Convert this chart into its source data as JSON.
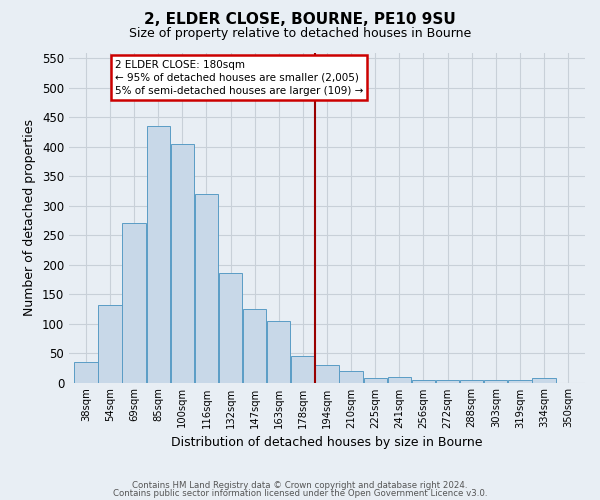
{
  "title1": "2, ELDER CLOSE, BOURNE, PE10 9SU",
  "title2": "Size of property relative to detached houses in Bourne",
  "xlabel": "Distribution of detached houses by size in Bourne",
  "ylabel": "Number of detached properties",
  "bar_labels": [
    "38sqm",
    "54sqm",
    "69sqm",
    "85sqm",
    "100sqm",
    "116sqm",
    "132sqm",
    "147sqm",
    "163sqm",
    "178sqm",
    "194sqm",
    "210sqm",
    "225sqm",
    "241sqm",
    "256sqm",
    "272sqm",
    "288sqm",
    "303sqm",
    "319sqm",
    "334sqm",
    "350sqm"
  ],
  "bar_values": [
    35,
    132,
    270,
    435,
    405,
    320,
    185,
    125,
    104,
    45,
    30,
    20,
    8,
    10,
    5,
    5,
    5,
    5,
    5,
    7,
    0
  ],
  "bar_color": "#c8d8e8",
  "bar_edgecolor": "#5a9cc5",
  "vline_x_index": 9,
  "vline_color": "#990000",
  "annotation_title": "2 ELDER CLOSE: 180sqm",
  "annotation_line1": "← 95% of detached houses are smaller (2,005)",
  "annotation_line2": "5% of semi-detached houses are larger (109) →",
  "annotation_box_color": "#ffffff",
  "annotation_box_edgecolor": "#cc0000",
  "background_color": "#e8eef4",
  "grid_color": "#c8d0d8",
  "ylim": [
    0,
    560
  ],
  "yticks": [
    0,
    50,
    100,
    150,
    200,
    250,
    300,
    350,
    400,
    450,
    500,
    550
  ],
  "footer1": "Contains HM Land Registry data © Crown copyright and database right 2024.",
  "footer2": "Contains public sector information licensed under the Open Government Licence v3.0."
}
